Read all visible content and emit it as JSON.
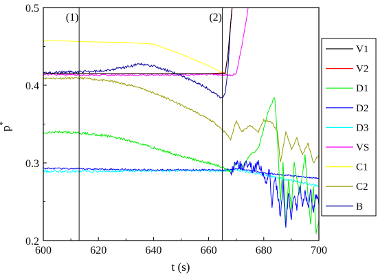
{
  "chart_data": {
    "type": "line",
    "xlabel": "t (s)",
    "ylabel": "p",
    "ylabel_sup": "*",
    "xlim": [
      600,
      700
    ],
    "ylim": [
      0.2,
      0.5
    ],
    "xticks": [
      600,
      620,
      640,
      660,
      680,
      700
    ],
    "yticks": [
      0.2,
      0.3,
      0.4,
      0.5
    ],
    "xtick_labels": [
      "600",
      "620",
      "640",
      "660",
      "680",
      "700"
    ],
    "ytick_labels": [
      "0.2",
      "0.3",
      "0.4",
      "0.5"
    ],
    "legend_position": "right",
    "vlines": [
      {
        "label": "(1)",
        "x": 613
      },
      {
        "label": "(2)",
        "x": 665
      }
    ],
    "series": [
      {
        "name": "V1",
        "color": "#000000",
        "noise": 0,
        "points": [
          [
            600,
            0.415
          ],
          [
            620,
            0.415
          ],
          [
            640,
            0.415
          ],
          [
            660,
            0.415
          ],
          [
            666,
            0.415
          ],
          [
            667,
            0.44
          ],
          [
            668,
            0.48
          ],
          [
            669,
            0.52
          ]
        ]
      },
      {
        "name": "V2",
        "color": "#ff0000",
        "noise": 0,
        "points": [
          [
            600,
            0.415
          ],
          [
            620,
            0.415
          ],
          [
            640,
            0.415
          ],
          [
            660,
            0.415
          ],
          [
            666,
            0.416
          ],
          [
            667,
            0.44
          ],
          [
            668,
            0.48
          ],
          [
            669,
            0.52
          ]
        ]
      },
      {
        "name": "D1",
        "color": "#00ee00",
        "noise": 0.0015,
        "points": [
          [
            600,
            0.338
          ],
          [
            605,
            0.34
          ],
          [
            615,
            0.338
          ],
          [
            625,
            0.334
          ],
          [
            635,
            0.325
          ],
          [
            645,
            0.314
          ],
          [
            655,
            0.304
          ],
          [
            662,
            0.298
          ],
          [
            666,
            0.293
          ],
          [
            668,
            0.288
          ],
          [
            670,
            0.3
          ],
          [
            672,
            0.294
          ],
          [
            675,
            0.31
          ],
          [
            678,
            0.318
          ],
          [
            680,
            0.345
          ],
          [
            682,
            0.37
          ],
          [
            684,
            0.385
          ],
          [
            685,
            0.33
          ],
          [
            686,
            0.25
          ],
          [
            687,
            0.3
          ],
          [
            688,
            0.22
          ],
          [
            689,
            0.28
          ],
          [
            690,
            0.24
          ],
          [
            691,
            0.3
          ],
          [
            693,
            0.26
          ],
          [
            695,
            0.31
          ],
          [
            696,
            0.26
          ],
          [
            697,
            0.22
          ],
          [
            698,
            0.27
          ],
          [
            699,
            0.21
          ],
          [
            700,
            0.225
          ]
        ]
      },
      {
        "name": "D2",
        "color": "#0000ff",
        "noise": 0.001,
        "points": [
          [
            600,
            0.293
          ],
          [
            620,
            0.292
          ],
          [
            640,
            0.291
          ],
          [
            660,
            0.291
          ],
          [
            666,
            0.291
          ],
          [
            670,
            0.293
          ],
          [
            680,
            0.287
          ],
          [
            700,
            0.28
          ]
        ]
      },
      {
        "name": "D3",
        "color": "#00ffff",
        "noise": 0.0015,
        "points": [
          [
            600,
            0.289
          ],
          [
            620,
            0.289
          ],
          [
            640,
            0.29
          ],
          [
            660,
            0.29
          ],
          [
            666,
            0.29
          ],
          [
            670,
            0.291
          ],
          [
            680,
            0.285
          ],
          [
            700,
            0.27
          ]
        ]
      },
      {
        "name": "VS",
        "color": "#ff00ff",
        "noise": 0.001,
        "points": [
          [
            600,
            0.414
          ],
          [
            620,
            0.413
          ],
          [
            640,
            0.413
          ],
          [
            660,
            0.414
          ],
          [
            668,
            0.413
          ],
          [
            670,
            0.414
          ],
          [
            672,
            0.45
          ],
          [
            674,
            0.49
          ],
          [
            675,
            0.52
          ]
        ]
      },
      {
        "name": "C1",
        "color": "#ffff00",
        "noise": 0,
        "points": [
          [
            600,
            0.458
          ],
          [
            615,
            0.456
          ],
          [
            630,
            0.455
          ],
          [
            640,
            0.453
          ],
          [
            650,
            0.44
          ],
          [
            660,
            0.425
          ],
          [
            664,
            0.418
          ],
          [
            667,
            0.414
          ]
        ]
      },
      {
        "name": "C2",
        "color": "#999900",
        "noise": 0.0012,
        "points": [
          [
            600,
            0.409
          ],
          [
            615,
            0.409
          ],
          [
            625,
            0.405
          ],
          [
            635,
            0.397
          ],
          [
            645,
            0.383
          ],
          [
            655,
            0.366
          ],
          [
            662,
            0.352
          ],
          [
            665,
            0.343
          ],
          [
            667,
            0.335
          ],
          [
            668,
            0.33
          ],
          [
            670,
            0.355
          ],
          [
            672,
            0.34
          ],
          [
            675,
            0.348
          ],
          [
            678,
            0.34
          ],
          [
            680,
            0.355
          ],
          [
            683,
            0.352
          ],
          [
            685,
            0.34
          ],
          [
            686,
            0.3
          ],
          [
            687,
            0.32
          ],
          [
            688,
            0.34
          ],
          [
            690,
            0.318
          ],
          [
            692,
            0.332
          ],
          [
            694,
            0.31
          ],
          [
            696,
            0.325
          ],
          [
            698,
            0.3
          ],
          [
            700,
            0.31
          ]
        ]
      },
      {
        "name": "B",
        "color": "#000099",
        "noise": 0.0015,
        "points": [
          [
            600,
            0.416
          ],
          [
            610,
            0.417
          ],
          [
            620,
            0.418
          ],
          [
            628,
            0.422
          ],
          [
            635,
            0.427
          ],
          [
            640,
            0.425
          ],
          [
            648,
            0.415
          ],
          [
            655,
            0.405
          ],
          [
            660,
            0.395
          ],
          [
            664,
            0.385
          ],
          [
            665,
            0.383
          ],
          [
            666,
            0.39
          ],
          [
            667,
            0.42
          ],
          [
            668,
            0.48
          ],
          [
            669,
            0.52
          ]
        ]
      }
    ],
    "blue_burst": {
      "color": "#0000ff",
      "points": [
        [
          668,
          0.288
        ],
        [
          670,
          0.302
        ],
        [
          672,
          0.294
        ],
        [
          674,
          0.3
        ],
        [
          676,
          0.292
        ],
        [
          678,
          0.298
        ],
        [
          680,
          0.286
        ],
        [
          681,
          0.27
        ],
        [
          682,
          0.296
        ],
        [
          683,
          0.24
        ],
        [
          684,
          0.282
        ],
        [
          685,
          0.262
        ],
        [
          686,
          0.23
        ],
        [
          687,
          0.275
        ],
        [
          688,
          0.215
        ],
        [
          689,
          0.265
        ],
        [
          690,
          0.222
        ],
        [
          691,
          0.262
        ],
        [
          692,
          0.238
        ],
        [
          693,
          0.272
        ],
        [
          694,
          0.248
        ],
        [
          695,
          0.262
        ],
        [
          696,
          0.244
        ],
        [
          697,
          0.262
        ],
        [
          698,
          0.236
        ],
        [
          699,
          0.258
        ],
        [
          700,
          0.246
        ]
      ]
    }
  }
}
